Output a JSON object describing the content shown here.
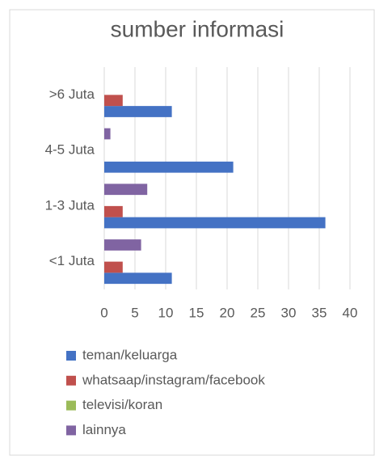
{
  "chart_data": {
    "type": "bar",
    "orientation": "horizontal",
    "title": "sumber informasi",
    "categories": [
      "<1 Juta",
      "1-3 Juta",
      "4-5 Juta",
      ">6 Juta"
    ],
    "series": [
      {
        "name": "teman/keluarga",
        "color": "#4472c4",
        "values": [
          11,
          36,
          21,
          11
        ]
      },
      {
        "name": "whatsaap/instagram/facebook",
        "color": "#c0504d",
        "values": [
          3,
          3,
          0,
          3
        ]
      },
      {
        "name": "televisi/koran",
        "color": "#9bbb59",
        "values": [
          0,
          0,
          0,
          0
        ]
      },
      {
        "name": "lainnya",
        "color": "#8064a2",
        "values": [
          6,
          7,
          1,
          0
        ]
      }
    ],
    "xlim": [
      0,
      40
    ],
    "xticks": [
      0,
      5,
      10,
      15,
      20,
      25,
      30,
      35,
      40
    ],
    "grid": true,
    "legend": "bottom"
  }
}
